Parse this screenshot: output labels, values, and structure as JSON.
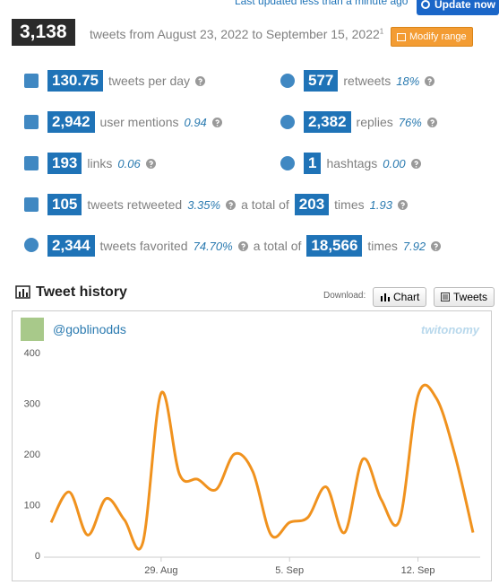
{
  "header": {
    "last_updated": "Last updated less than a minute ago",
    "update_button": "Update now"
  },
  "summary": {
    "total": "3,138",
    "text": "tweets from August 23, 2022 to September 15, 2022",
    "footnote": "1",
    "modify_button": "Modify range"
  },
  "stats": [
    {
      "value": "130.75",
      "label": "tweets per day"
    },
    {
      "value": "577",
      "label": "retweets",
      "ratio": "18%"
    },
    {
      "value": "2,942",
      "label": "user mentions",
      "ratio": "0.94"
    },
    {
      "value": "2,382",
      "label": "replies",
      "ratio": "76%"
    },
    {
      "value": "193",
      "label": "links",
      "ratio": "0.06"
    },
    {
      "value": "1",
      "label": "hashtags",
      "ratio": "0.00"
    },
    {
      "value": "105",
      "label": "tweets retweeted",
      "ratio": "3.35%",
      "total_label": "a total of",
      "total": "203",
      "times_label": "times",
      "times_ratio": "1.93"
    },
    {
      "value": "2,344",
      "label": "tweets favorited",
      "ratio": "74.70%",
      "total_label": "a total of",
      "total": "18,566",
      "times_label": "times",
      "times_ratio": "7.92"
    }
  ],
  "tweet_history": {
    "title": "Tweet history",
    "download_label": "Download:",
    "chart_button": "Chart",
    "tweets_button": "Tweets"
  },
  "chart_data": {
    "type": "line",
    "account": "@goblinodds",
    "logo": "twitonomy",
    "categories": [
      null,
      null,
      null,
      null,
      null,
      null,
      "29. Aug",
      null,
      null,
      null,
      null,
      null,
      null,
      "5. Sep",
      null,
      null,
      null,
      null,
      null,
      null,
      "12. Sep",
      null,
      null,
      null
    ],
    "series": [
      {
        "name": "Tweets",
        "color": "#f0921e",
        "values": [
          65,
          125,
          40,
          112,
          70,
          25,
          320,
          160,
          150,
          130,
          200,
          165,
          40,
          65,
          75,
          135,
          45,
          190,
          110,
          70,
          315,
          310,
          200,
          45
        ]
      }
    ],
    "ylim": [
      0,
      400
    ],
    "yticks": [
      0,
      100,
      200,
      300,
      400
    ],
    "grid": false
  }
}
